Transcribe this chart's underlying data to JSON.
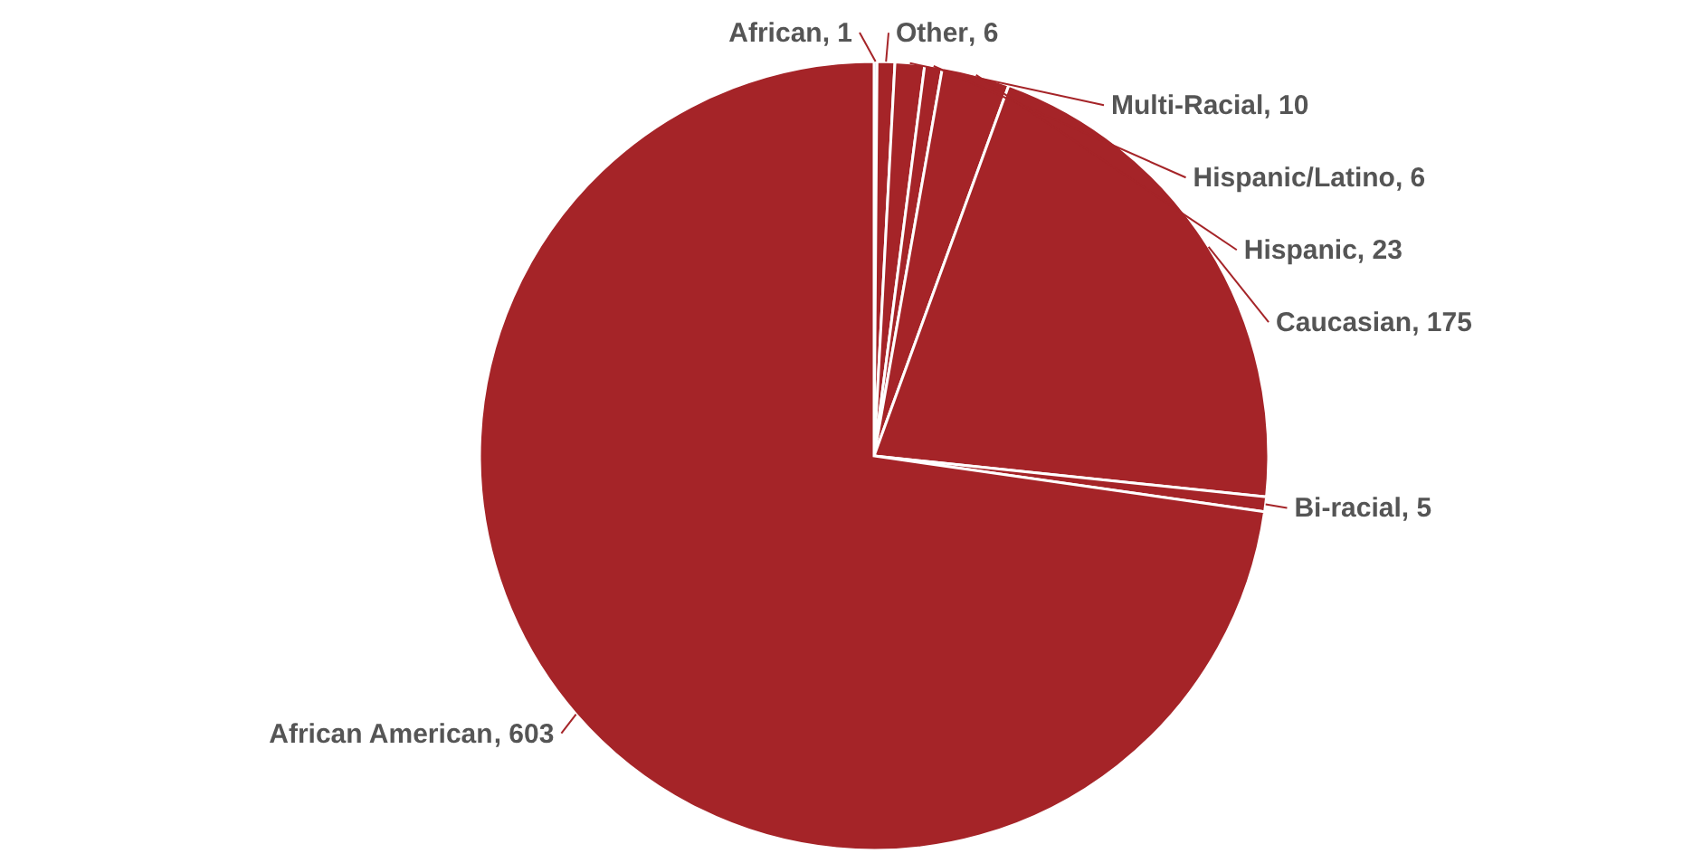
{
  "chart_data": {
    "type": "pie",
    "categories": [
      "African",
      "Other",
      "Multi-Racial",
      "Hispanic/Latino",
      "Hispanic",
      "Caucasian",
      "Bi-racial",
      "African American"
    ],
    "values": [
      1,
      6,
      10,
      6,
      23,
      175,
      5,
      603
    ],
    "colors": [
      "#3355aa",
      "#a52428",
      "#a52428",
      "#a52428",
      "#a52428",
      "#a52428",
      "#a52428",
      "#a52428"
    ],
    "value_labels": [
      ", 1",
      ", 6",
      ", 10",
      ", 6",
      ", 23",
      ", 175",
      ", 5",
      ", 603"
    ]
  }
}
